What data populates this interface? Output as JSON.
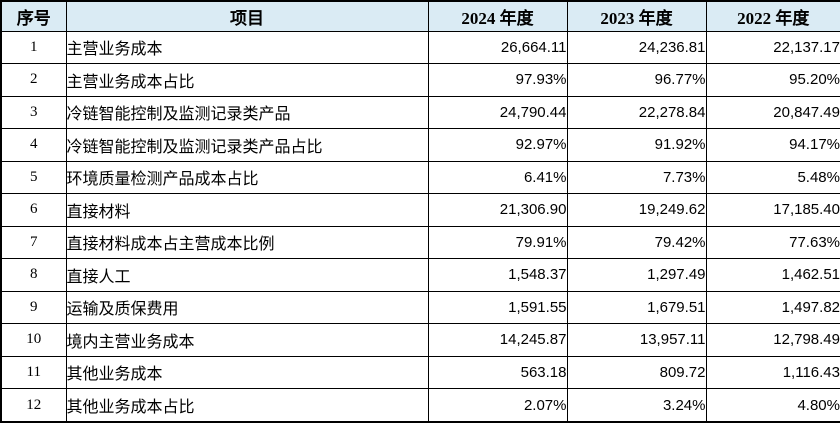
{
  "colors": {
    "header_bg": "#daebf4",
    "border": "#000000",
    "text": "#000000",
    "body_bg": "#ffffff"
  },
  "table": {
    "headers": {
      "no": "序号",
      "item": "项目",
      "y2024": "2024 年度",
      "y2023": "2023 年度",
      "y2022": "2022 年度"
    },
    "rows": [
      {
        "no": "1",
        "item": "主营业务成本",
        "y2024": "26,664.11",
        "y2023": "24,236.81",
        "y2022": "22,137.17"
      },
      {
        "no": "2",
        "item": "主营业务成本占比",
        "y2024": "97.93%",
        "y2023": "96.77%",
        "y2022": "95.20%"
      },
      {
        "no": "3",
        "item": "冷链智能控制及监测记录类产品",
        "y2024": "24,790.44",
        "y2023": "22,278.84",
        "y2022": "20,847.49"
      },
      {
        "no": "4",
        "item": "冷链智能控制及监测记录类产品占比",
        "y2024": "92.97%",
        "y2023": "91.92%",
        "y2022": "94.17%"
      },
      {
        "no": "5",
        "item": "环境质量检测产品成本占比",
        "y2024": "6.41%",
        "y2023": "7.73%",
        "y2022": "5.48%"
      },
      {
        "no": "6",
        "item": "直接材料",
        "y2024": "21,306.90",
        "y2023": "19,249.62",
        "y2022": "17,185.40"
      },
      {
        "no": "7",
        "item": "直接材料成本占主营成本比例",
        "y2024": "79.91%",
        "y2023": "79.42%",
        "y2022": "77.63%"
      },
      {
        "no": "8",
        "item": "直接人工",
        "y2024": "1,548.37",
        "y2023": "1,297.49",
        "y2022": "1,462.51"
      },
      {
        "no": "9",
        "item": "运输及质保费用",
        "y2024": "1,591.55",
        "y2023": "1,679.51",
        "y2022": "1,497.82"
      },
      {
        "no": "10",
        "item": "境内主营业务成本",
        "y2024": "14,245.87",
        "y2023": "13,957.11",
        "y2022": "12,798.49"
      },
      {
        "no": "11",
        "item": "其他业务成本",
        "y2024": "563.18",
        "y2023": "809.72",
        "y2022": "1,116.43"
      },
      {
        "no": "12",
        "item": "其他业务成本占比",
        "y2024": "2.07%",
        "y2023": "3.24%",
        "y2022": "4.80%"
      }
    ]
  }
}
